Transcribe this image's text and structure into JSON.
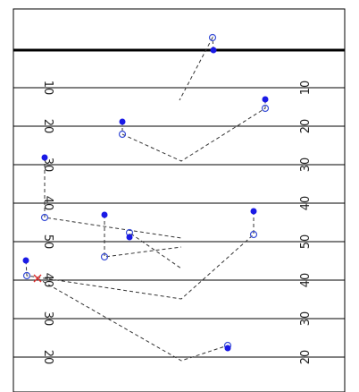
{
  "colors": {
    "line": "#000000",
    "path": "#333333",
    "filled_marker": "#1a1ae6",
    "open_marker": "#3a4fd6",
    "x_marker": "#e03030"
  },
  "field": {
    "yard_lines": [
      {
        "left_label": "10",
        "right_label": "10"
      },
      {
        "left_label": "20",
        "right_label": "20"
      },
      {
        "left_label": "30",
        "right_label": "30"
      },
      {
        "left_label": "40",
        "right_label": "40"
      },
      {
        "left_label": "50",
        "right_label": "50"
      },
      {
        "left_label": "40",
        "right_label": "40"
      },
      {
        "left_label": "30",
        "right_label": "30"
      },
      {
        "left_label": "20",
        "right_label": "20"
      }
    ]
  }
}
